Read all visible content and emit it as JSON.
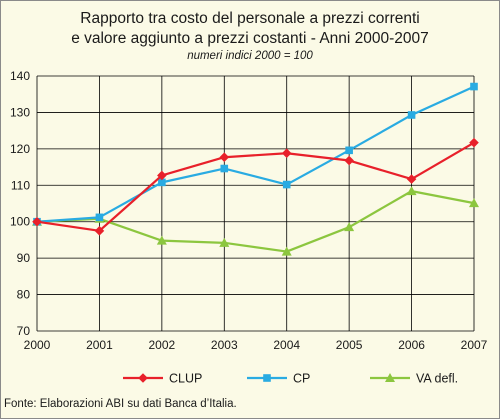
{
  "title_line1": "Rapporto tra costo del personale a prezzi correnti",
  "title_line2": "e valore aggiunto a prezzi costanti - Anni 2000-2007",
  "subtitle": "numeri indici 2000 = 100",
  "source": "Fonte: Elaborazioni ABI su dati Banca d’Italia.",
  "colors": {
    "background": "#fbfae6",
    "grid": "#000000",
    "CLUP": "#e8202a",
    "CP": "#29abe2",
    "VA defl.": "#8cc63f"
  },
  "chart_data": {
    "type": "line",
    "x": [
      "2000",
      "2001",
      "2002",
      "2003",
      "2004",
      "2005",
      "2006",
      "2007"
    ],
    "ylim": [
      70,
      140
    ],
    "yticks": [
      70,
      80,
      90,
      100,
      110,
      120,
      130,
      140
    ],
    "grid": true,
    "legend_position": "bottom",
    "series": [
      {
        "name": "CLUP",
        "marker": "diamond",
        "values": [
          100,
          97.5,
          112.7,
          117.7,
          118.8,
          116.8,
          111.7,
          121.7
        ]
      },
      {
        "name": "CP",
        "marker": "square",
        "values": [
          100,
          101.2,
          110.8,
          114.6,
          110.2,
          119.6,
          129.3,
          137.1
        ]
      },
      {
        "name": "VA defl.",
        "marker": "triangle",
        "values": [
          100,
          100.8,
          94.8,
          94.2,
          91.8,
          98.5,
          108.4,
          105.1
        ]
      }
    ]
  }
}
